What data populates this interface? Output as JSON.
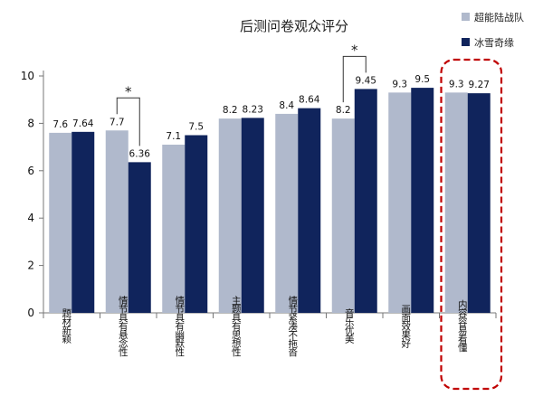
{
  "chart_data": {
    "type": "bar",
    "title": "后测问卷观众评分",
    "categories": [
      "题材新颖",
      "情节具有悬念性",
      "情节具有幽默性",
      "主题具有思想性",
      "情节紧凑不拖沓",
      "音乐优美",
      "画面效果好",
      "内容容易看懂"
    ],
    "series": [
      {
        "name": "超能陆战队",
        "color": "#b0b9cc",
        "values": [
          7.6,
          7.7,
          7.1,
          8.2,
          8.4,
          8.2,
          9.3,
          9.3
        ],
        "labels": [
          "7.6",
          "7.7",
          "7.1",
          "8.2",
          "8.4",
          "8.2",
          "9.3",
          "9.3"
        ]
      },
      {
        "name": "冰雪奇缘",
        "color": "#10245c",
        "values": [
          7.64,
          6.36,
          7.5,
          8.23,
          8.64,
          9.45,
          9.5,
          9.27
        ],
        "labels": [
          "7.64",
          "6.36",
          "7.5",
          "8.23",
          "8.64",
          "9.45",
          "9.5",
          "9.27"
        ]
      }
    ],
    "ylim": [
      0,
      10
    ],
    "yticks": [
      "0",
      "2",
      "4",
      "6",
      "8",
      "10"
    ],
    "grid": false,
    "legend": "top-right",
    "significance_marks": [
      {
        "category_index": 1,
        "symbol": "*"
      },
      {
        "category_index": 5,
        "symbol": "*"
      }
    ],
    "highlight": {
      "category_index": 7,
      "style": "red dashed rounded box",
      "color": "#c00000"
    }
  }
}
